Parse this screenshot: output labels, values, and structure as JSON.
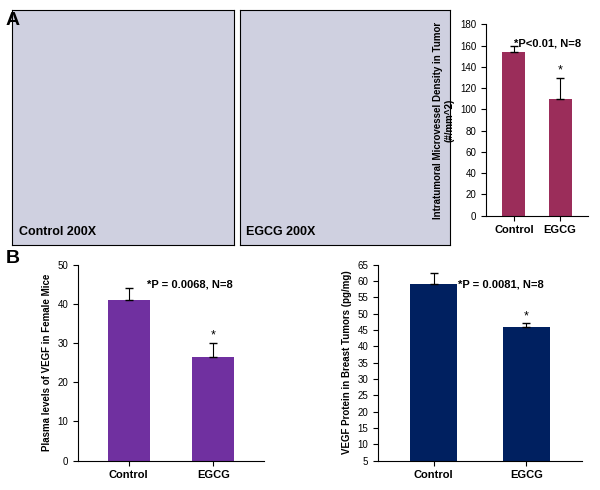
{
  "panel_labels": [
    "A",
    "B"
  ],
  "images": [
    {
      "label": "Control 200X"
    },
    {
      "label": "EGCG 200X"
    }
  ],
  "chart_data": [
    {
      "type": "bar",
      "y_label": "Intratumoral Microvessel Density in Tumor (#/mm^2)",
      "categories": [
        "Control",
        "EGCG"
      ],
      "values": [
        154,
        110
      ],
      "errors": [
        6,
        20
      ],
      "color": "#9b2d5a",
      "ylim": [
        0,
        180
      ],
      "yticks": [
        0,
        20,
        40,
        60,
        80,
        100,
        120,
        140,
        160,
        180
      ],
      "annotations": [
        {
          "text": "*P<0.01, N=8"
        },
        {
          "text": "*",
          "category": "EGCG"
        }
      ]
    },
    {
      "type": "bar",
      "y_label": "Plasma levels of VEGF in Female Mice",
      "categories": [
        "Control",
        "EGCG"
      ],
      "values": [
        41,
        26.5
      ],
      "errors": [
        3,
        3.5
      ],
      "color": "#7030a0",
      "ylim": [
        0,
        50
      ],
      "yticks": [
        0,
        10,
        20,
        30,
        40,
        50
      ],
      "annotations": [
        {
          "text": "*P = 0.0068, N=8"
        },
        {
          "text": "*",
          "category": "EGCG"
        }
      ]
    },
    {
      "type": "bar",
      "y_label": "VEGF Protein in Breast Tumors (pg/mg)",
      "categories": [
        "Control",
        "EGCG"
      ],
      "values": [
        59,
        45.8
      ],
      "errors": [
        3.3,
        1.2
      ],
      "color": "#002060",
      "ylim": [
        5,
        65
      ],
      "yticks": [
        5,
        10,
        15,
        20,
        25,
        30,
        35,
        40,
        45,
        50,
        55,
        60,
        65
      ],
      "annotations": [
        {
          "text": "*P = 0.0081, N=8"
        },
        {
          "text": "*",
          "category": "EGCG"
        }
      ]
    }
  ]
}
